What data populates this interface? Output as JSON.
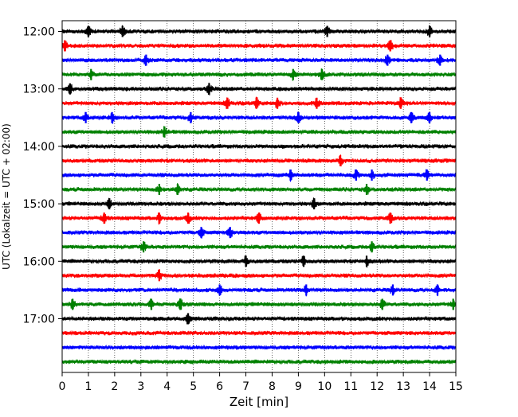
{
  "chart_data": {
    "type": "line",
    "title": "",
    "xlabel": "Zeit  [min]",
    "ylabel": "UTC (Lokalzeit = UTC + 02:00)",
    "xlim": [
      0,
      15
    ],
    "x_ticks": [
      "0",
      "1",
      "2",
      "3",
      "4",
      "5",
      "6",
      "7",
      "8",
      "9",
      "10",
      "11",
      "12",
      "13",
      "14",
      "15"
    ],
    "y_ticks": [
      "12:00",
      "13:00",
      "14:00",
      "15:00",
      "16:00",
      "17:00"
    ],
    "grid": "vertical dotted lines at each minute",
    "trace_interval_minutes": 15,
    "trace_colors": [
      "#000000",
      "#ff0000",
      "#0000ff",
      "#008000"
    ],
    "traces": [
      {
        "start": "12:00",
        "bursts": [
          1.0,
          2.3,
          10.1,
          14.0
        ]
      },
      {
        "start": "12:15",
        "bursts": [
          0.1,
          12.5
        ]
      },
      {
        "start": "12:30",
        "bursts": [
          3.2,
          12.4,
          14.4
        ]
      },
      {
        "start": "12:45",
        "bursts": [
          1.1,
          8.8,
          9.9
        ]
      },
      {
        "start": "13:00",
        "bursts": [
          0.3,
          5.6
        ]
      },
      {
        "start": "13:15",
        "bursts": [
          6.3,
          7.4,
          8.2,
          9.7,
          12.9
        ]
      },
      {
        "start": "13:30",
        "bursts": [
          0.9,
          1.9,
          4.9,
          9.0,
          13.3,
          14.0
        ]
      },
      {
        "start": "13:45",
        "bursts": [
          3.9
        ]
      },
      {
        "start": "14:00",
        "bursts": []
      },
      {
        "start": "14:15",
        "bursts": [
          10.6
        ]
      },
      {
        "start": "14:30",
        "bursts": [
          8.7,
          11.2,
          11.8,
          13.9
        ]
      },
      {
        "start": "14:45",
        "bursts": [
          3.7,
          4.4,
          11.6
        ]
      },
      {
        "start": "15:00",
        "bursts": [
          1.8,
          9.6
        ]
      },
      {
        "start": "15:15",
        "bursts": [
          1.6,
          3.7,
          4.8,
          7.5,
          12.5
        ]
      },
      {
        "start": "15:30",
        "bursts": [
          5.3,
          6.4
        ]
      },
      {
        "start": "15:45",
        "bursts": [
          3.1,
          11.8
        ]
      },
      {
        "start": "16:00",
        "bursts": [
          7.0,
          9.2,
          11.6
        ]
      },
      {
        "start": "16:15",
        "bursts": [
          3.7
        ]
      },
      {
        "start": "16:30",
        "bursts": [
          6.0,
          9.3,
          12.6,
          14.3
        ]
      },
      {
        "start": "16:45",
        "bursts": [
          0.4,
          3.4,
          4.5,
          12.2,
          14.9
        ]
      },
      {
        "start": "17:00",
        "bursts": [
          4.8
        ]
      },
      {
        "start": "17:15",
        "bursts": []
      },
      {
        "start": "17:30",
        "bursts": []
      },
      {
        "start": "17:45",
        "bursts": []
      }
    ]
  }
}
